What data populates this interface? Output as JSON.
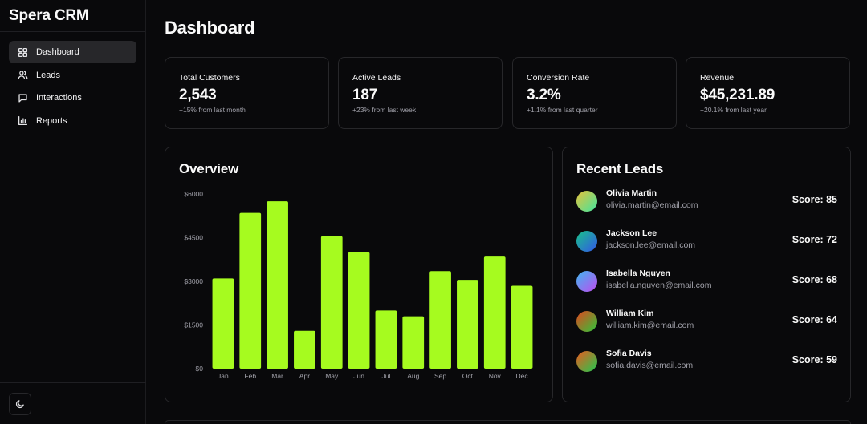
{
  "app": {
    "title": "Spera CRM"
  },
  "sidebar": {
    "items": [
      {
        "label": "Dashboard",
        "icon": "dashboard-icon",
        "active": true
      },
      {
        "label": "Leads",
        "icon": "users-icon",
        "active": false
      },
      {
        "label": "Interactions",
        "icon": "message-icon",
        "active": false
      },
      {
        "label": "Reports",
        "icon": "bar-chart-icon",
        "active": false
      }
    ],
    "theme_toggle_icon": "moon-icon"
  },
  "page": {
    "title": "Dashboard"
  },
  "stats": [
    {
      "label": "Total Customers",
      "value": "2,543",
      "change": "+15% from last month"
    },
    {
      "label": "Active Leads",
      "value": "187",
      "change": "+23% from last week"
    },
    {
      "label": "Conversion Rate",
      "value": "3.2%",
      "change": "+1.1% from last quarter"
    },
    {
      "label": "Revenue",
      "value": "$45,231.89",
      "change": "+20.1% from last year"
    }
  ],
  "overview": {
    "title": "Overview"
  },
  "chart_data": {
    "type": "bar",
    "categories": [
      "Jan",
      "Feb",
      "Mar",
      "Apr",
      "May",
      "Jun",
      "Jul",
      "Aug",
      "Sep",
      "Oct",
      "Nov",
      "Dec"
    ],
    "values": [
      3100,
      5350,
      5750,
      1300,
      4550,
      4000,
      2000,
      1800,
      3350,
      3050,
      3850,
      2850
    ],
    "ylim": [
      0,
      6000
    ],
    "yticks": [
      0,
      1500,
      3000,
      4500,
      6000
    ],
    "ytick_labels": [
      "$0",
      "$1500",
      "$3000",
      "$4500",
      "$6000"
    ],
    "grid": false,
    "bar_color": "#a6fb1f",
    "title": "",
    "xlabel": "",
    "ylabel": ""
  },
  "recent_leads": {
    "title": "Recent Leads",
    "items": [
      {
        "name": "Olivia Martin",
        "email": "olivia.martin@email.com",
        "score": "Score: 85",
        "gradient": [
          "#e8c23a",
          "#3fe5a0"
        ]
      },
      {
        "name": "Jackson Lee",
        "email": "jackson.lee@email.com",
        "score": "Score: 72",
        "gradient": [
          "#18c38a",
          "#3357e8"
        ]
      },
      {
        "name": "Isabella Nguyen",
        "email": "isabella.nguyen@email.com",
        "score": "Score: 68",
        "gradient": [
          "#3fb6f0",
          "#c04cf0"
        ]
      },
      {
        "name": "William Kim",
        "email": "william.kim@email.com",
        "score": "Score: 64",
        "gradient": [
          "#e2461f",
          "#2cc63a"
        ]
      },
      {
        "name": "Sofia Davis",
        "email": "sofia.davis@email.com",
        "score": "Score: 59",
        "gradient": [
          "#ec5a1f",
          "#1fc94f"
        ]
      }
    ]
  }
}
